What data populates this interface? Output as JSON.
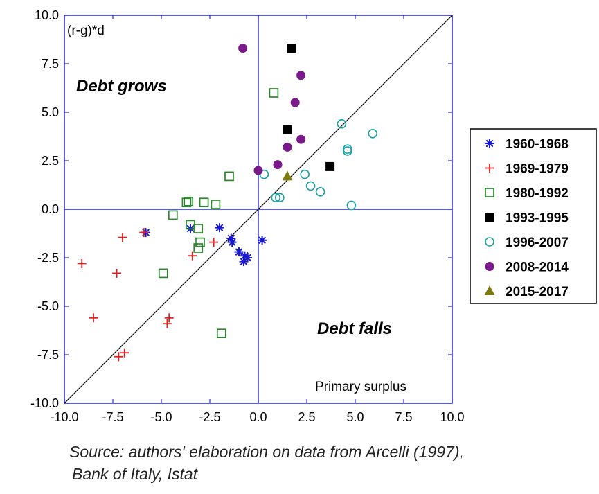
{
  "chart_data": {
    "type": "scatter",
    "xlim": [
      -10,
      10
    ],
    "ylim": [
      -10,
      10
    ],
    "x_ticks": [
      "-10.0",
      "-7.5",
      "-5.0",
      "-2.5",
      "0.0",
      "2.5",
      "5.0",
      "7.5",
      "10.0"
    ],
    "y_ticks": [
      "10.0",
      "7.5",
      "5.0",
      "2.5",
      "0.0",
      "-2.5",
      "-5.0",
      "-7.5",
      "-10.0"
    ],
    "ylabel": "(r-g)*d",
    "xlabel": "Primary surplus",
    "annotations": {
      "debt_grows": "Debt grows",
      "debt_falls": "Debt falls"
    },
    "reference_line": "y = x",
    "legend_position": "right",
    "grid": false,
    "series": [
      {
        "name": "1960-1968",
        "marker": "asterisk",
        "color": "#1a1acc",
        "points": [
          [
            -5.8,
            -1.2
          ],
          [
            -3.5,
            -1.0
          ],
          [
            -2.0,
            -0.95
          ],
          [
            -1.4,
            -1.5
          ],
          [
            -1.35,
            -1.7
          ],
          [
            -1.0,
            -2.2
          ],
          [
            -0.7,
            -2.4
          ],
          [
            -0.75,
            -2.7
          ],
          [
            -0.55,
            -2.5
          ],
          [
            0.2,
            -1.6
          ]
        ]
      },
      {
        "name": "1969-1979",
        "marker": "plus",
        "color": "#e02020",
        "points": [
          [
            -9.1,
            -2.8
          ],
          [
            -8.5,
            -5.6
          ],
          [
            -7.3,
            -3.3
          ],
          [
            -7.0,
            -1.45
          ],
          [
            -7.2,
            -7.6
          ],
          [
            -6.9,
            -7.4
          ],
          [
            -5.9,
            -1.2
          ],
          [
            -4.7,
            -5.9
          ],
          [
            -4.6,
            -5.6
          ],
          [
            -3.4,
            -2.4
          ],
          [
            -2.3,
            -1.7
          ]
        ]
      },
      {
        "name": "1980-1992",
        "marker": "square-open",
        "color": "#2a8a2a",
        "points": [
          [
            -4.9,
            -3.3
          ],
          [
            -4.4,
            -0.3
          ],
          [
            -3.7,
            0.35
          ],
          [
            -3.6,
            0.4
          ],
          [
            -3.5,
            -0.8
          ],
          [
            -3.1,
            -1.0
          ],
          [
            -3.0,
            -1.7
          ],
          [
            -3.1,
            -2.0
          ],
          [
            -2.8,
            0.35
          ],
          [
            -2.2,
            0.25
          ],
          [
            -1.9,
            -6.4
          ],
          [
            -1.5,
            1.7
          ],
          [
            0.8,
            6.0
          ]
        ]
      },
      {
        "name": "1993-1995",
        "marker": "square-filled",
        "color": "#000000",
        "points": [
          [
            1.7,
            8.3
          ],
          [
            1.5,
            4.1
          ],
          [
            3.7,
            2.2
          ]
        ]
      },
      {
        "name": "1996-2007",
        "marker": "circle-open",
        "color": "#1aa0a0",
        "points": [
          [
            0.3,
            1.8
          ],
          [
            0.9,
            0.6
          ],
          [
            1.1,
            0.6
          ],
          [
            2.4,
            1.8
          ],
          [
            2.7,
            1.2
          ],
          [
            3.2,
            0.9
          ],
          [
            4.3,
            4.4
          ],
          [
            4.6,
            3.0
          ],
          [
            4.6,
            3.1
          ],
          [
            4.8,
            0.2
          ],
          [
            5.9,
            3.9
          ]
        ]
      },
      {
        "name": "2008-2014",
        "marker": "circle-filled",
        "color": "#7a1a8a",
        "points": [
          [
            -0.8,
            8.3
          ],
          [
            0.0,
            2.0
          ],
          [
            1.0,
            2.3
          ],
          [
            1.5,
            3.2
          ],
          [
            1.9,
            5.5
          ],
          [
            2.2,
            6.9
          ],
          [
            2.2,
            3.6
          ]
        ]
      },
      {
        "name": "2015-2017",
        "marker": "triangle-filled",
        "color": "#7d7a10",
        "points": [
          [
            1.5,
            1.7
          ]
        ]
      }
    ]
  },
  "source": {
    "line1": "Source: authors' elaboration on data from Arcelli (1997),",
    "line2": "Bank of Italy, Istat"
  }
}
